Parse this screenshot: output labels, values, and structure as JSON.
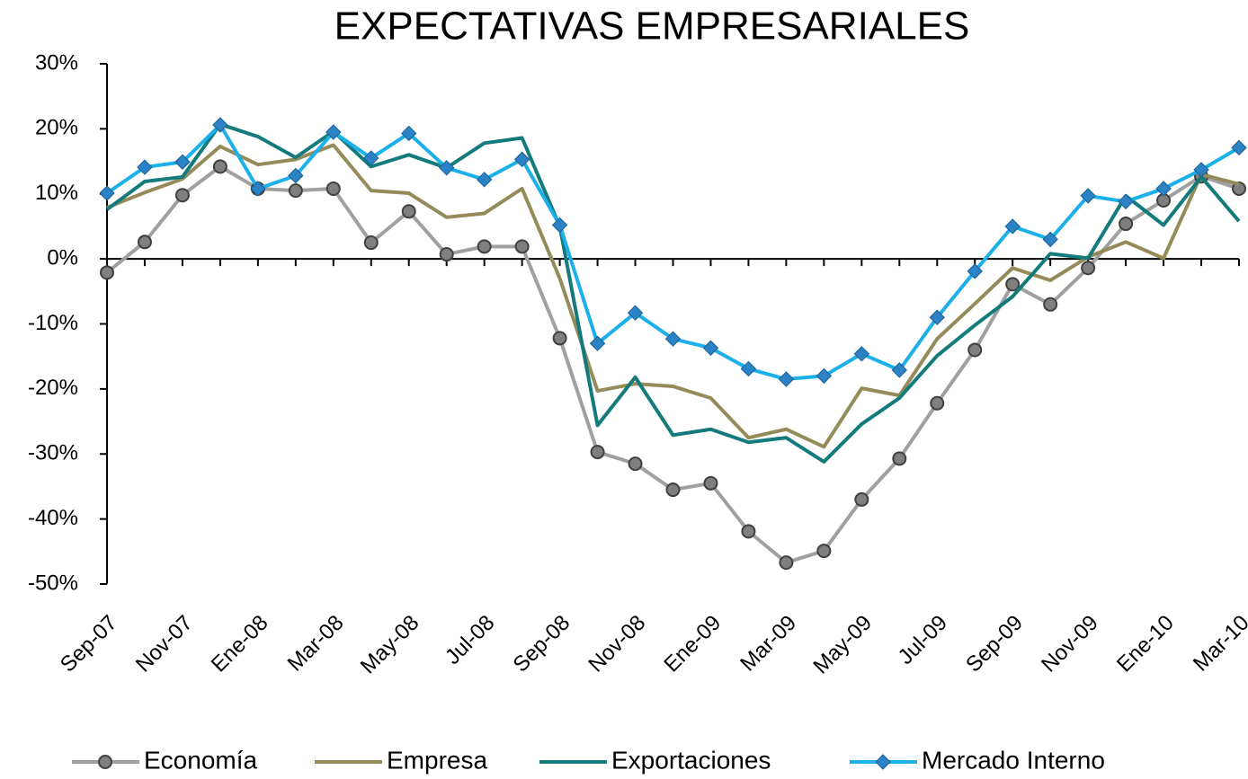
{
  "chart_data": {
    "type": "line",
    "title": "EXPECTATIVAS EMPRESARIALES",
    "categories": [
      "Sep-07",
      null,
      "Nov-07",
      null,
      "Ene-08",
      null,
      "Mar-08",
      null,
      "May-08",
      null,
      "Jul-08",
      null,
      "Sep-08",
      null,
      "Nov-08",
      null,
      "Ene-09",
      null,
      "Mar-09",
      null,
      "May-09",
      null,
      "Jul-09",
      null,
      "Sep-09",
      null,
      "Nov-09",
      null,
      "Ene-10",
      null,
      "Mar-10"
    ],
    "ylim": [
      -50,
      30
    ],
    "yticks": [
      {
        "value": -50,
        "label": "-50%"
      },
      {
        "value": -40,
        "label": "-40%"
      },
      {
        "value": -30,
        "label": "-30%"
      },
      {
        "value": -20,
        "label": "-20%"
      },
      {
        "value": -10,
        "label": "-10%"
      },
      {
        "value": 0,
        "label": "0%"
      },
      {
        "value": 10,
        "label": "10%"
      },
      {
        "value": 20,
        "label": "20%"
      },
      {
        "value": 30,
        "label": "30%"
      }
    ],
    "legend": "bottom",
    "series": [
      {
        "name": "Economía",
        "color": "#a0a0a0",
        "marker": "circle",
        "marker_color": "#7f7f7f",
        "values": [
          -2.1,
          2.6,
          9.8,
          14.2,
          10.8,
          10.5,
          10.8,
          2.5,
          7.3,
          0.7,
          1.9,
          1.9,
          -12.2,
          -29.7,
          -31.5,
          -35.5,
          -34.5,
          -41.9,
          -46.7,
          -44.9,
          -37.0,
          -30.7,
          -22.2,
          -14.0,
          -3.9,
          -7.0,
          -1.4,
          5.4,
          9.0,
          12.7,
          10.8
        ]
      },
      {
        "name": "Empresa",
        "color": "#958b5a",
        "values": [
          7.9,
          10.2,
          12.3,
          17.3,
          14.5,
          15.3,
          17.5,
          10.5,
          10.1,
          6.4,
          7.0,
          10.8,
          -3.0,
          -20.3,
          -19.2,
          -19.6,
          -21.4,
          -27.5,
          -26.2,
          -28.9,
          -19.9,
          -21.0,
          -12.3,
          -6.9,
          -1.4,
          -3.3,
          0.3,
          2.6,
          0.1,
          13.0,
          11.5
        ]
      },
      {
        "name": "Exportaciones",
        "color": "#137b7b",
        "values": [
          7.6,
          11.9,
          12.6,
          20.7,
          18.8,
          15.6,
          19.6,
          14.2,
          16.0,
          14.0,
          17.8,
          18.6,
          5.0,
          -25.6,
          -18.2,
          -27.1,
          -26.2,
          -28.2,
          -27.5,
          -31.2,
          -25.4,
          -21.4,
          -14.9,
          -10.2,
          -5.8,
          0.8,
          0.1,
          9.7,
          5.2,
          12.6,
          5.8
        ]
      },
      {
        "name": "Mercado Interno",
        "color": "#1bb0ea",
        "marker": "diamond",
        "marker_color": "#2b82c4",
        "values": [
          10.1,
          14.1,
          14.9,
          20.6,
          10.8,
          12.8,
          19.5,
          15.5,
          19.3,
          14.0,
          12.2,
          15.3,
          5.2,
          -13.0,
          -8.3,
          -12.3,
          -13.7,
          -16.9,
          -18.5,
          -18.0,
          -14.6,
          -17.1,
          -9.0,
          -1.9,
          5.0,
          3.0,
          9.7,
          8.8,
          10.8,
          13.7,
          17.1
        ]
      }
    ]
  }
}
